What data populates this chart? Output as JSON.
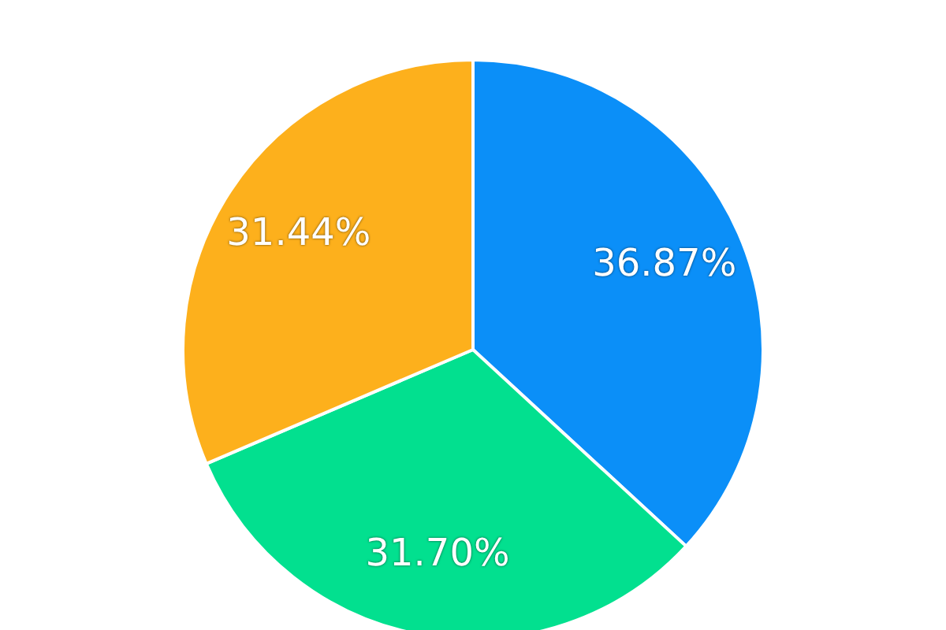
{
  "chart_data": {
    "type": "pie",
    "categories": [
      null,
      null,
      null
    ],
    "values": [
      36.87,
      31.7,
      31.44
    ],
    "colors": [
      "#0b8ff8",
      "#02e08f",
      "#fdb01c"
    ],
    "value_labels": [
      "36.87%",
      "31.70%",
      "31.44%"
    ]
  }
}
